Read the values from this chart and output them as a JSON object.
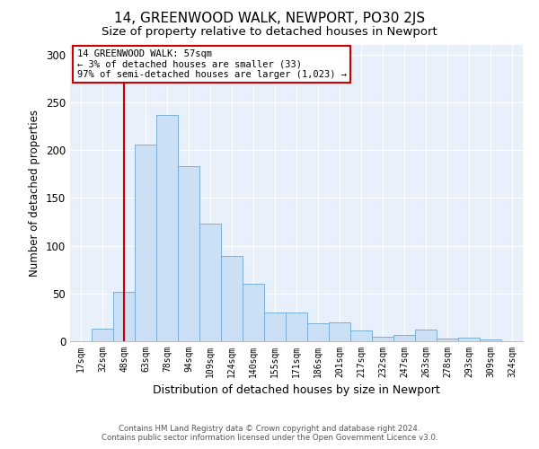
{
  "title": "14, GREENWOOD WALK, NEWPORT, PO30 2JS",
  "subtitle": "Size of property relative to detached houses in Newport",
  "xlabel": "Distribution of detached houses by size in Newport",
  "ylabel": "Number of detached properties",
  "bar_color": "#cce0f5",
  "bar_edge_color": "#7bafd4",
  "vline_color": "#cc0000",
  "vline_x": 2.0,
  "annotation_text": "14 GREENWOOD WALK: 57sqm\n← 3% of detached houses are smaller (33)\n97% of semi-detached houses are larger (1,023) →",
  "annotation_box_color": "white",
  "annotation_box_edge_color": "#cc0000",
  "footer_line1": "Contains HM Land Registry data © Crown copyright and database right 2024.",
  "footer_line2": "Contains public sector information licensed under the Open Government Licence v3.0.",
  "categories": [
    "17sqm",
    "32sqm",
    "48sqm",
    "63sqm",
    "78sqm",
    "94sqm",
    "109sqm",
    "124sqm",
    "140sqm",
    "155sqm",
    "171sqm",
    "186sqm",
    "201sqm",
    "217sqm",
    "232sqm",
    "247sqm",
    "263sqm",
    "278sqm",
    "293sqm",
    "309sqm",
    "324sqm"
  ],
  "values": [
    0,
    13,
    52,
    206,
    237,
    183,
    123,
    89,
    60,
    30,
    30,
    19,
    20,
    11,
    5,
    7,
    12,
    3,
    4,
    2,
    0
  ],
  "ylim": [
    0,
    310
  ],
  "yticks": [
    0,
    50,
    100,
    150,
    200,
    250,
    300
  ],
  "background_color": "#e8f0fb",
  "title_fontsize": 11,
  "subtitle_fontsize": 9.5
}
